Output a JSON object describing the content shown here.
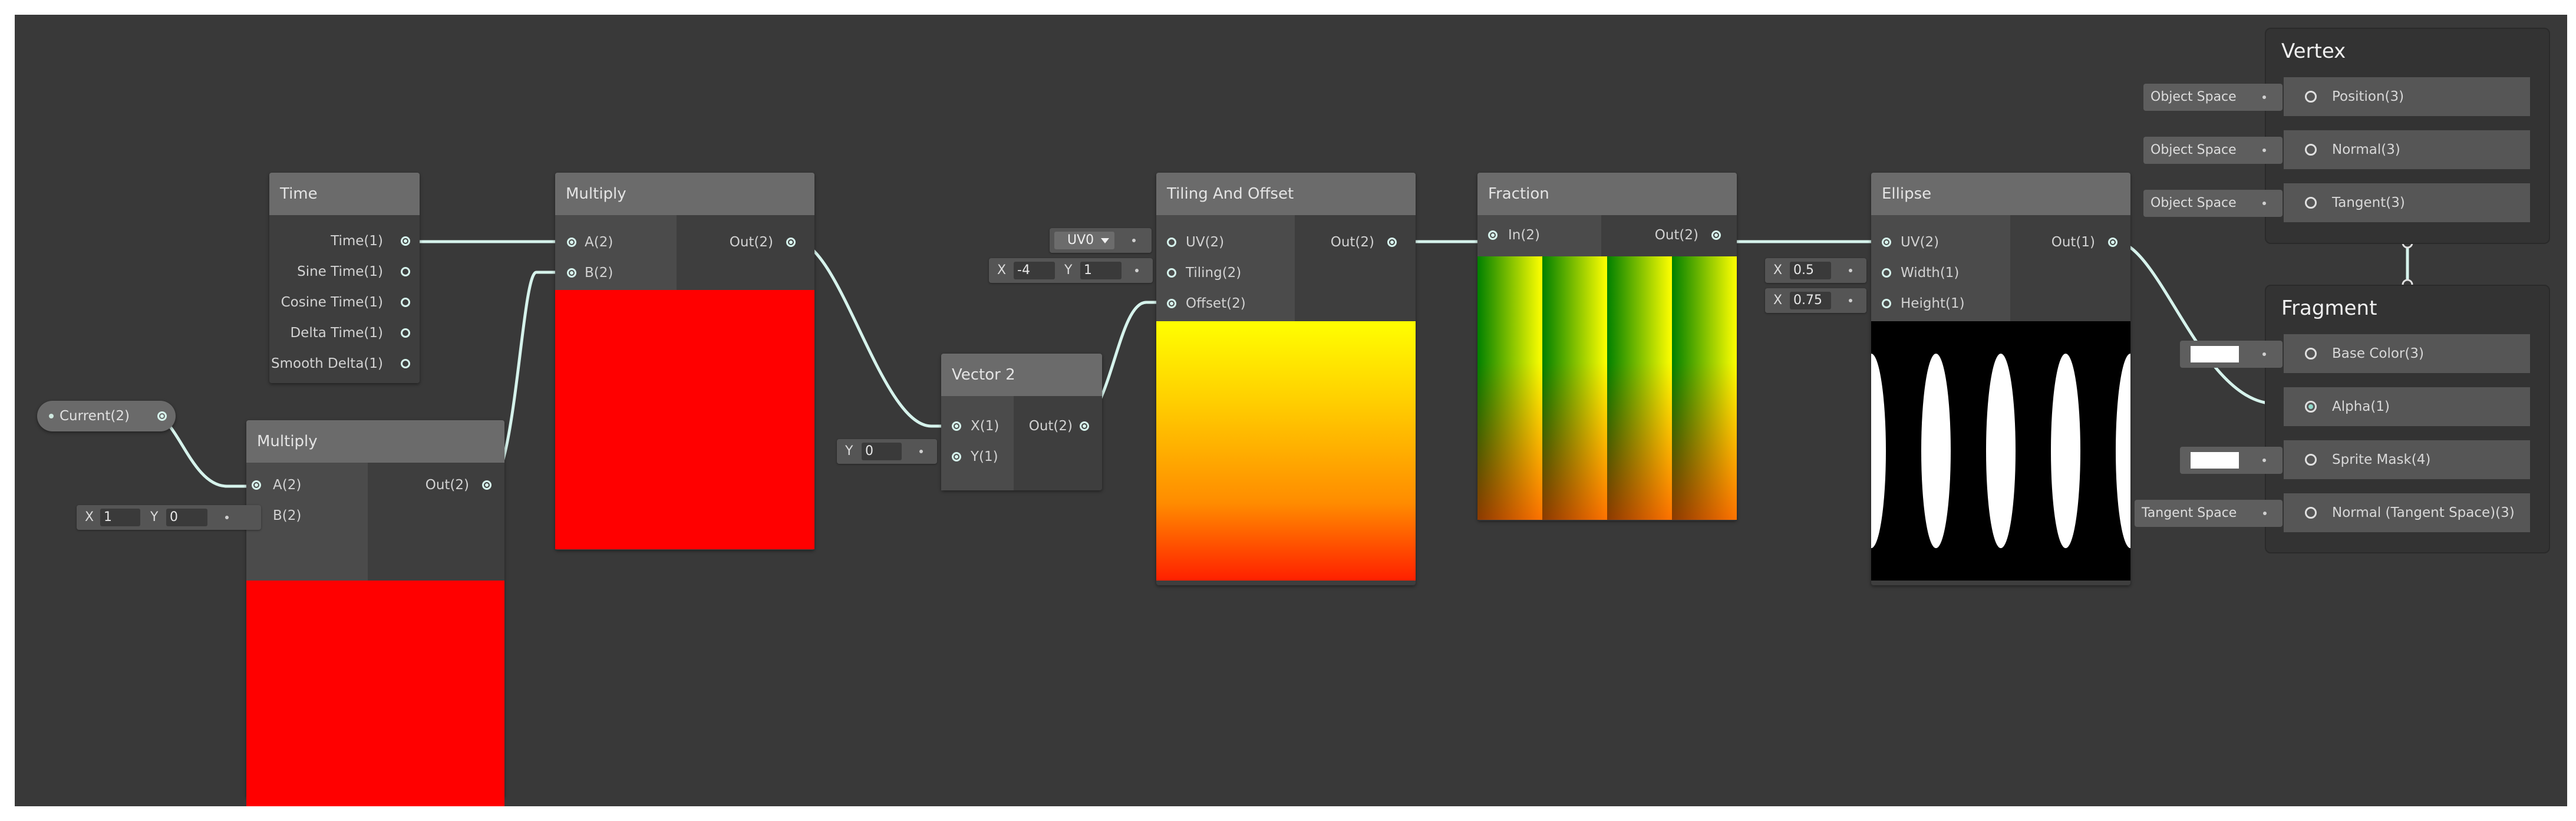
{
  "graph": {
    "property_current": {
      "label": "Current(2)"
    },
    "time_node": {
      "title": "Time",
      "outputs": [
        "Time(1)",
        "Sine Time(1)",
        "Cosine Time(1)",
        "Delta Time(1)",
        "Smooth Delta(1)"
      ]
    },
    "multiply_a": {
      "title": "Multiply",
      "inputs": [
        "A(2)",
        "B(2)"
      ],
      "output": "Out(2)",
      "default_b": {
        "x_key": "X",
        "x_value": "1",
        "y_key": "Y",
        "y_value": "0"
      },
      "preview_color": "#ff0000"
    },
    "multiply_b": {
      "title": "Multiply",
      "inputs": [
        "A(2)",
        "B(2)"
      ],
      "output": "Out(2)",
      "preview_color": "#ff0000"
    },
    "vector2": {
      "title": "Vector 2",
      "inputs": [
        "X(1)",
        "Y(1)"
      ],
      "output": "Out(2)",
      "default_y": {
        "key": "Y",
        "value": "0"
      }
    },
    "tiling_offset": {
      "title": "Tiling And Offset",
      "inputs": [
        "UV(2)",
        "Tiling(2)",
        "Offset(2)"
      ],
      "output": "Out(2)",
      "uv_channel": "UV0",
      "tiling": {
        "x_key": "X",
        "x_value": "-4",
        "y_key": "Y",
        "y_value": "1"
      },
      "preview": "yellow-to-red gradient"
    },
    "fraction": {
      "title": "Fraction",
      "inputs": [
        "In(2)"
      ],
      "output": "Out(2)",
      "preview": "repeating green-red stripes"
    },
    "ellipse": {
      "title": "Ellipse",
      "inputs": [
        "UV(2)",
        "Width(1)",
        "Height(1)"
      ],
      "output": "Out(1)",
      "width": {
        "key": "X",
        "value": "0.5"
      },
      "height": {
        "key": "X",
        "value": "0.75"
      },
      "preview": "white ellipses on black"
    }
  },
  "master": {
    "vertex": {
      "title": "Vertex",
      "slots": [
        {
          "label": "Position(3)",
          "source": "Object Space"
        },
        {
          "label": "Normal(3)",
          "source": "Object Space"
        },
        {
          "label": "Tangent(3)",
          "source": "Object Space"
        }
      ]
    },
    "fragment": {
      "title": "Fragment",
      "slots": [
        {
          "label": "Base Color(3)",
          "source": "white swatch"
        },
        {
          "label": "Alpha(1)",
          "source": "connected"
        },
        {
          "label": "Sprite Mask(4)",
          "source": "white swatch"
        },
        {
          "label": "Normal (Tangent Space)(3)",
          "source": "Tangent Space"
        }
      ]
    }
  },
  "colors": {
    "canvas": "#393939",
    "node_header": "#6b6b6b",
    "wire": "#d6f3ec",
    "preview_red": "#ff0000"
  }
}
